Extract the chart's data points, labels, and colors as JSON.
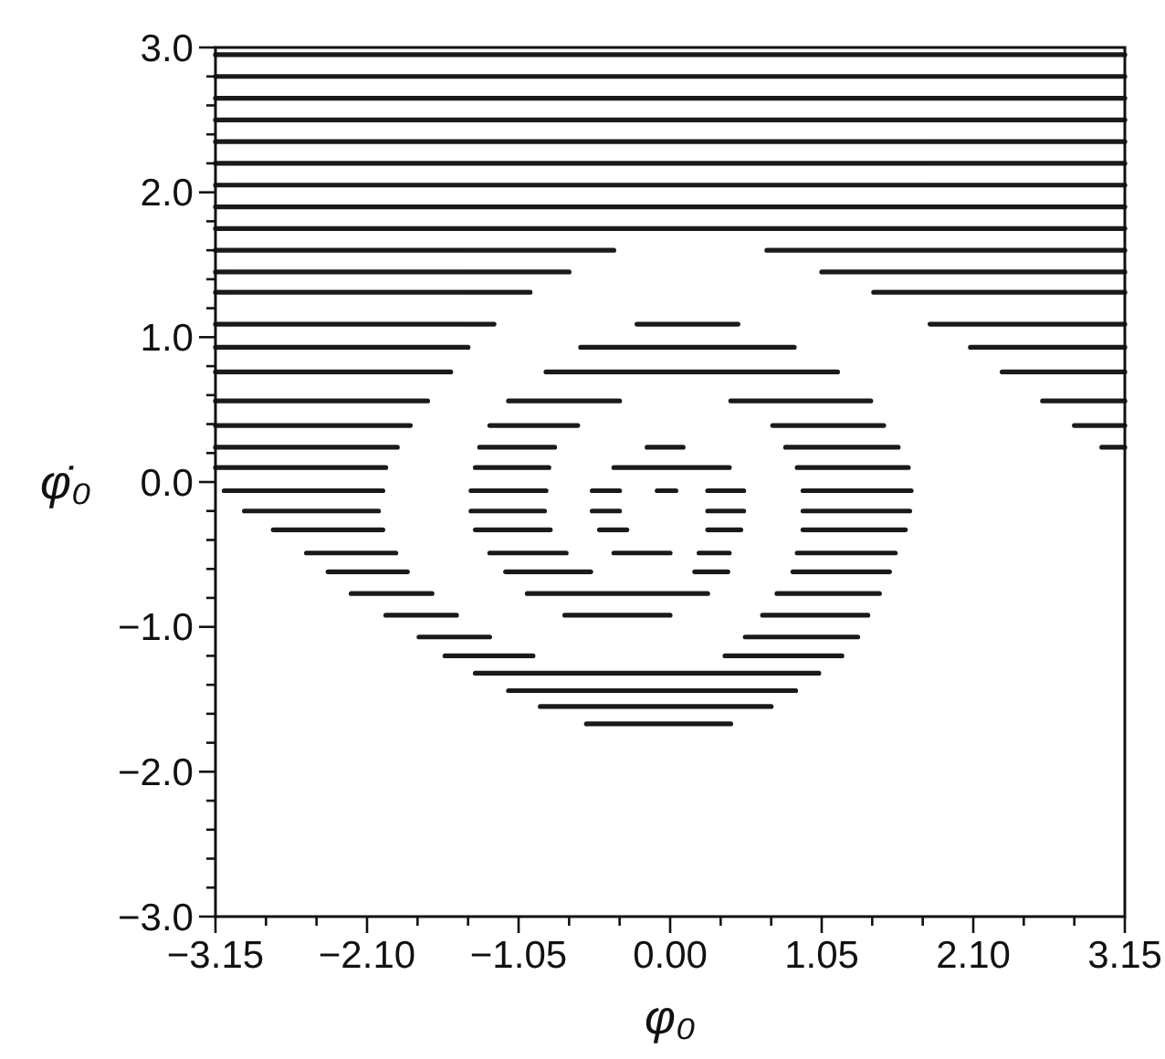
{
  "chart_data": {
    "type": "line",
    "xlabel": "φ₀",
    "ylabel": "φ̇₀",
    "xlim": [
      -3.15,
      3.15
    ],
    "ylim": [
      -3.0,
      3.0
    ],
    "xticks": [
      {
        "value": -3.15,
        "label": "−3.15"
      },
      {
        "value": -2.8,
        "label": null
      },
      {
        "value": -2.45,
        "label": null
      },
      {
        "value": -2.1,
        "label": "−2.10"
      },
      {
        "value": -1.75,
        "label": null
      },
      {
        "value": -1.4,
        "label": null
      },
      {
        "value": -1.05,
        "label": "−1.05"
      },
      {
        "value": -0.7,
        "label": null
      },
      {
        "value": -0.35,
        "label": null
      },
      {
        "value": 0,
        "label": "0.00"
      },
      {
        "value": 0.35,
        "label": null
      },
      {
        "value": 0.7,
        "label": null
      },
      {
        "value": 1.05,
        "label": "1.05"
      },
      {
        "value": 1.4,
        "label": null
      },
      {
        "value": 1.75,
        "label": null
      },
      {
        "value": 2.1,
        "label": "2.10"
      },
      {
        "value": 2.45,
        "label": null
      },
      {
        "value": 2.8,
        "label": null
      },
      {
        "value": 3.15,
        "label": "3.15"
      }
    ],
    "yticks": [
      {
        "value": -3,
        "label": "−3.0"
      },
      {
        "value": -2.8,
        "label": null
      },
      {
        "value": -2.6,
        "label": null
      },
      {
        "value": -2.4,
        "label": null
      },
      {
        "value": -2.2,
        "label": null
      },
      {
        "value": -2,
        "label": "−2.0"
      },
      {
        "value": -1.8,
        "label": null
      },
      {
        "value": -1.6,
        "label": null
      },
      {
        "value": -1.4,
        "label": null
      },
      {
        "value": -1.2,
        "label": null
      },
      {
        "value": -1,
        "label": "−1.0"
      },
      {
        "value": -0.8,
        "label": null
      },
      {
        "value": -0.6,
        "label": null
      },
      {
        "value": -0.4,
        "label": null
      },
      {
        "value": -0.2,
        "label": null
      },
      {
        "value": 0,
        "label": "0.0"
      },
      {
        "value": 0.2,
        "label": null
      },
      {
        "value": 0.4,
        "label": null
      },
      {
        "value": 0.6,
        "label": null
      },
      {
        "value": 0.8,
        "label": null
      },
      {
        "value": 1,
        "label": "1.0"
      },
      {
        "value": 1.2,
        "label": null
      },
      {
        "value": 1.4,
        "label": null
      },
      {
        "value": 1.6,
        "label": null
      },
      {
        "value": 1.8,
        "label": null
      },
      {
        "value": 2,
        "label": "2.0"
      },
      {
        "value": 2.2,
        "label": null
      },
      {
        "value": 2.4,
        "label": null
      },
      {
        "value": 2.6,
        "label": null
      },
      {
        "value": 2.8,
        "label": null
      },
      {
        "value": 3,
        "label": "3.0"
      }
    ],
    "series": [
      {
        "color": "#1a1a1a",
        "x": [
          -3.15,
          3.15
        ],
        "values": [
          2.95,
          2.95
        ]
      },
      {
        "color": "#1a1a1a",
        "x": [
          -3.15,
          3.15
        ],
        "values": [
          2.8,
          2.8
        ]
      },
      {
        "color": "#1a1a1a",
        "x": [
          -3.15,
          3.15
        ],
        "values": [
          2.65,
          2.65
        ]
      },
      {
        "color": "#1a1a1a",
        "x": [
          -3.15,
          3.15
        ],
        "values": [
          2.5,
          2.5
        ]
      },
      {
        "color": "#1a1a1a",
        "x": [
          -3.15,
          3.15
        ],
        "values": [
          2.35,
          2.35
        ]
      },
      {
        "color": "#1a1a1a",
        "x": [
          -3.15,
          3.15
        ],
        "values": [
          2.2,
          2.2
        ]
      },
      {
        "color": "#1a1a1a",
        "x": [
          -3.15,
          3.15
        ],
        "values": [
          2.05,
          2.05
        ]
      },
      {
        "color": "#1a1a1a",
        "x": [
          -3.15,
          3.15
        ],
        "values": [
          1.9,
          1.9
        ]
      },
      {
        "color": "#1a1a1a",
        "x": [
          -3.15,
          3.15
        ],
        "values": [
          1.75,
          1.75
        ]
      },
      {
        "color": "#1a1a1a",
        "x": [
          -3.15,
          -0.39
        ],
        "values": [
          1.6,
          1.6
        ]
      },
      {
        "color": "#1a1a1a",
        "x": [
          0.67,
          3.15
        ],
        "values": [
          1.6,
          1.6
        ]
      },
      {
        "color": "#1a1a1a",
        "x": [
          -3.15,
          -0.7
        ],
        "values": [
          1.45,
          1.45
        ]
      },
      {
        "color": "#1a1a1a",
        "x": [
          1.05,
          3.15
        ],
        "values": [
          1.45,
          1.45
        ]
      },
      {
        "color": "#1a1a1a",
        "x": [
          -3.15,
          -0.97
        ],
        "values": [
          1.31,
          1.31
        ]
      },
      {
        "color": "#1a1a1a",
        "x": [
          1.41,
          3.15
        ],
        "values": [
          1.31,
          1.31
        ]
      },
      {
        "color": "#1a1a1a",
        "x": [
          -3.15,
          -1.22
        ],
        "values": [
          1.09,
          1.09
        ]
      },
      {
        "color": "#1a1a1a",
        "x": [
          -0.23,
          0.47
        ],
        "values": [
          1.09,
          1.09
        ]
      },
      {
        "color": "#1a1a1a",
        "x": [
          1.8,
          3.15
        ],
        "values": [
          1.09,
          1.09
        ]
      },
      {
        "color": "#1a1a1a",
        "x": [
          -3.15,
          -1.4
        ],
        "values": [
          0.93,
          0.93
        ]
      },
      {
        "color": "#1a1a1a",
        "x": [
          -0.62,
          0.86
        ],
        "values": [
          0.93,
          0.93
        ]
      },
      {
        "color": "#1a1a1a",
        "x": [
          2.08,
          3.15
        ],
        "values": [
          0.93,
          0.93
        ]
      },
      {
        "color": "#1a1a1a",
        "x": [
          -3.15,
          -1.52
        ],
        "values": [
          0.76,
          0.76
        ]
      },
      {
        "color": "#1a1a1a",
        "x": [
          -0.86,
          1.16
        ],
        "values": [
          0.76,
          0.76
        ]
      },
      {
        "color": "#1a1a1a",
        "x": [
          2.3,
          3.15
        ],
        "values": [
          0.76,
          0.76
        ]
      },
      {
        "color": "#1a1a1a",
        "x": [
          -3.15,
          -1.68
        ],
        "values": [
          0.56,
          0.56
        ]
      },
      {
        "color": "#1a1a1a",
        "x": [
          -1.12,
          -0.35
        ],
        "values": [
          0.56,
          0.56
        ]
      },
      {
        "color": "#1a1a1a",
        "x": [
          0.42,
          1.39
        ],
        "values": [
          0.56,
          0.56
        ]
      },
      {
        "color": "#1a1a1a",
        "x": [
          2.58,
          3.15
        ],
        "values": [
          0.56,
          0.56
        ]
      },
      {
        "color": "#1a1a1a",
        "x": [
          -3.15,
          -1.8
        ],
        "values": [
          0.39,
          0.39
        ]
      },
      {
        "color": "#1a1a1a",
        "x": [
          -1.25,
          -0.64
        ],
        "values": [
          0.39,
          0.39
        ]
      },
      {
        "color": "#1a1a1a",
        "x": [
          0.71,
          1.48
        ],
        "values": [
          0.39,
          0.39
        ]
      },
      {
        "color": "#1a1a1a",
        "x": [
          2.8,
          3.15
        ],
        "values": [
          0.39,
          0.39
        ]
      },
      {
        "color": "#1a1a1a",
        "x": [
          -3.15,
          -1.89
        ],
        "values": [
          0.24,
          0.24
        ]
      },
      {
        "color": "#1a1a1a",
        "x": [
          -1.32,
          -0.8
        ],
        "values": [
          0.24,
          0.24
        ]
      },
      {
        "color": "#1a1a1a",
        "x": [
          -0.16,
          0.09
        ],
        "values": [
          0.24,
          0.24
        ]
      },
      {
        "color": "#1a1a1a",
        "x": [
          0.8,
          1.58
        ],
        "values": [
          0.24,
          0.24
        ]
      },
      {
        "color": "#1a1a1a",
        "x": [
          2.99,
          3.15
        ],
        "values": [
          0.24,
          0.24
        ]
      },
      {
        "color": "#1a1a1a",
        "x": [
          -3.15,
          -1.97
        ],
        "values": [
          0.1,
          0.1
        ]
      },
      {
        "color": "#1a1a1a",
        "x": [
          -1.35,
          -0.84
        ],
        "values": [
          0.1,
          0.1
        ]
      },
      {
        "color": "#1a1a1a",
        "x": [
          -0.39,
          0.41
        ],
        "values": [
          0.1,
          0.1
        ]
      },
      {
        "color": "#1a1a1a",
        "x": [
          0.88,
          1.65
        ],
        "values": [
          0.1,
          0.1
        ]
      },
      {
        "color": "#1a1a1a",
        "x": [
          -3.09,
          -1.99
        ],
        "values": [
          -0.06,
          -0.06
        ]
      },
      {
        "color": "#1a1a1a",
        "x": [
          -1.38,
          -0.86
        ],
        "values": [
          -0.06,
          -0.06
        ]
      },
      {
        "color": "#1a1a1a",
        "x": [
          -0.54,
          -0.35
        ],
        "values": [
          -0.06,
          -0.06
        ]
      },
      {
        "color": "#1a1a1a",
        "x": [
          -0.09,
          0.04
        ],
        "values": [
          -0.06,
          -0.06
        ]
      },
      {
        "color": "#1a1a1a",
        "x": [
          0.26,
          0.51
        ],
        "values": [
          -0.06,
          -0.06
        ]
      },
      {
        "color": "#1a1a1a",
        "x": [
          0.92,
          1.67
        ],
        "values": [
          -0.06,
          -0.06
        ]
      },
      {
        "color": "#1a1a1a",
        "x": [
          -2.95,
          -2.02
        ],
        "values": [
          -0.2,
          -0.2
        ]
      },
      {
        "color": "#1a1a1a",
        "x": [
          -1.38,
          -0.87
        ],
        "values": [
          -0.2,
          -0.2
        ]
      },
      {
        "color": "#1a1a1a",
        "x": [
          -0.54,
          -0.35
        ],
        "values": [
          -0.2,
          -0.2
        ]
      },
      {
        "color": "#1a1a1a",
        "x": [
          0.26,
          0.51
        ],
        "values": [
          -0.2,
          -0.2
        ]
      },
      {
        "color": "#1a1a1a",
        "x": [
          0.92,
          1.66
        ],
        "values": [
          -0.2,
          -0.2
        ]
      },
      {
        "color": "#1a1a1a",
        "x": [
          -2.75,
          -1.99
        ],
        "values": [
          -0.33,
          -0.33
        ]
      },
      {
        "color": "#1a1a1a",
        "x": [
          -1.35,
          -0.83
        ],
        "values": [
          -0.33,
          -0.33
        ]
      },
      {
        "color": "#1a1a1a",
        "x": [
          -0.49,
          -0.3
        ],
        "values": [
          -0.33,
          -0.33
        ]
      },
      {
        "color": "#1a1a1a",
        "x": [
          0.26,
          0.49
        ],
        "values": [
          -0.33,
          -0.33
        ]
      },
      {
        "color": "#1a1a1a",
        "x": [
          0.92,
          1.63
        ],
        "values": [
          -0.33,
          -0.33
        ]
      },
      {
        "color": "#1a1a1a",
        "x": [
          -2.52,
          -1.9
        ],
        "values": [
          -0.49,
          -0.49
        ]
      },
      {
        "color": "#1a1a1a",
        "x": [
          -1.25,
          -0.72
        ],
        "values": [
          -0.49,
          -0.49
        ]
      },
      {
        "color": "#1a1a1a",
        "x": [
          -0.39,
          0.0
        ],
        "values": [
          -0.49,
          -0.49
        ]
      },
      {
        "color": "#1a1a1a",
        "x": [
          0.2,
          0.41
        ],
        "values": [
          -0.49,
          -0.49
        ]
      },
      {
        "color": "#1a1a1a",
        "x": [
          0.88,
          1.56
        ],
        "values": [
          -0.49,
          -0.49
        ]
      },
      {
        "color": "#1a1a1a",
        "x": [
          -2.37,
          -1.82
        ],
        "values": [
          -0.62,
          -0.62
        ]
      },
      {
        "color": "#1a1a1a",
        "x": [
          -1.14,
          -0.55
        ],
        "values": [
          -0.62,
          -0.62
        ]
      },
      {
        "color": "#1a1a1a",
        "x": [
          0.17,
          0.4
        ],
        "values": [
          -0.62,
          -0.62
        ]
      },
      {
        "color": "#1a1a1a",
        "x": [
          0.85,
          1.52
        ],
        "values": [
          -0.62,
          -0.62
        ]
      },
      {
        "color": "#1a1a1a",
        "x": [
          -2.21,
          -1.65
        ],
        "values": [
          -0.77,
          -0.77
        ]
      },
      {
        "color": "#1a1a1a",
        "x": [
          -0.99,
          0.26
        ],
        "values": [
          -0.77,
          -0.77
        ]
      },
      {
        "color": "#1a1a1a",
        "x": [
          0.74,
          1.45
        ],
        "values": [
          -0.77,
          -0.77
        ]
      },
      {
        "color": "#1a1a1a",
        "x": [
          -1.97,
          -1.48
        ],
        "values": [
          -0.92,
          -0.92
        ]
      },
      {
        "color": "#1a1a1a",
        "x": [
          -0.73,
          0.0
        ],
        "values": [
          -0.92,
          -0.92
        ]
      },
      {
        "color": "#1a1a1a",
        "x": [
          0.64,
          1.37
        ],
        "values": [
          -0.92,
          -0.92
        ]
      },
      {
        "color": "#1a1a1a",
        "x": [
          -1.74,
          -1.25
        ],
        "values": [
          -1.07,
          -1.07
        ]
      },
      {
        "color": "#1a1a1a",
        "x": [
          0.52,
          1.3
        ],
        "values": [
          -1.07,
          -1.07
        ]
      },
      {
        "color": "#1a1a1a",
        "x": [
          -1.56,
          -0.95
        ],
        "values": [
          -1.2,
          -1.2
        ]
      },
      {
        "color": "#1a1a1a",
        "x": [
          0.38,
          1.19
        ],
        "values": [
          -1.2,
          -1.2
        ]
      },
      {
        "color": "#1a1a1a",
        "x": [
          -1.35,
          1.03
        ],
        "values": [
          -1.32,
          -1.32
        ]
      },
      {
        "color": "#1a1a1a",
        "x": [
          -1.12,
          0.87
        ],
        "values": [
          -1.44,
          -1.44
        ]
      },
      {
        "color": "#1a1a1a",
        "x": [
          -0.9,
          0.7
        ],
        "values": [
          -1.55,
          -1.55
        ]
      },
      {
        "color": "#1a1a1a",
        "x": [
          -0.58,
          0.42
        ],
        "values": [
          -1.67,
          -1.67
        ]
      }
    ]
  }
}
